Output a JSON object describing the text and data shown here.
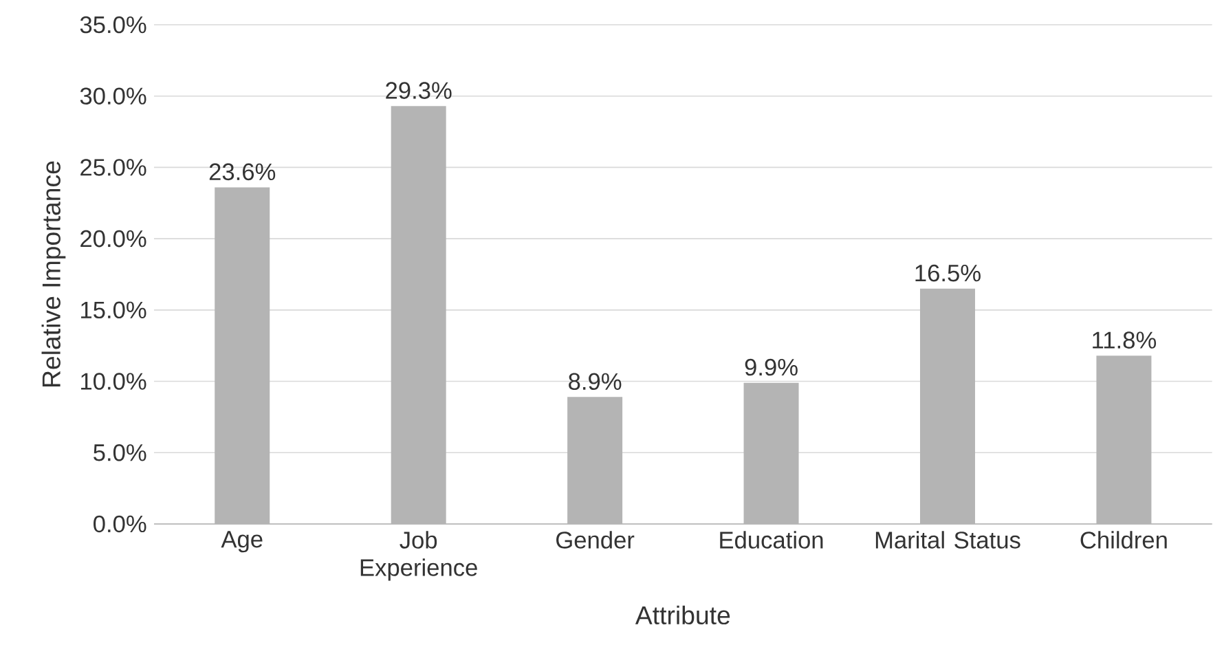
{
  "chart_data": {
    "type": "bar",
    "xlabel": "Attribute",
    "ylabel": "Relative Importance",
    "categories": [
      "Age",
      "Job Experience",
      "Gender",
      "Education",
      "Marital Status",
      "Children"
    ],
    "values": [
      23.6,
      29.3,
      8.9,
      9.9,
      16.5,
      11.8
    ],
    "value_labels": [
      "23.6%",
      "29.3%",
      "8.9%",
      "9.9%",
      "16.5%",
      "11.8%"
    ],
    "color": "#b4b4b4",
    "ylim": [
      0,
      35
    ],
    "yticks": [
      {
        "value": 0,
        "label": "0.0%"
      },
      {
        "value": 5,
        "label": "5.0%"
      },
      {
        "value": 10,
        "label": "10.0%"
      },
      {
        "value": 15,
        "label": "15.0%"
      },
      {
        "value": 20,
        "label": "20.0%"
      },
      {
        "value": 25,
        "label": "25.0%"
      },
      {
        "value": 30,
        "label": "30.0%"
      },
      {
        "value": 35,
        "label": "35.0%"
      }
    ],
    "grid": "y"
  }
}
